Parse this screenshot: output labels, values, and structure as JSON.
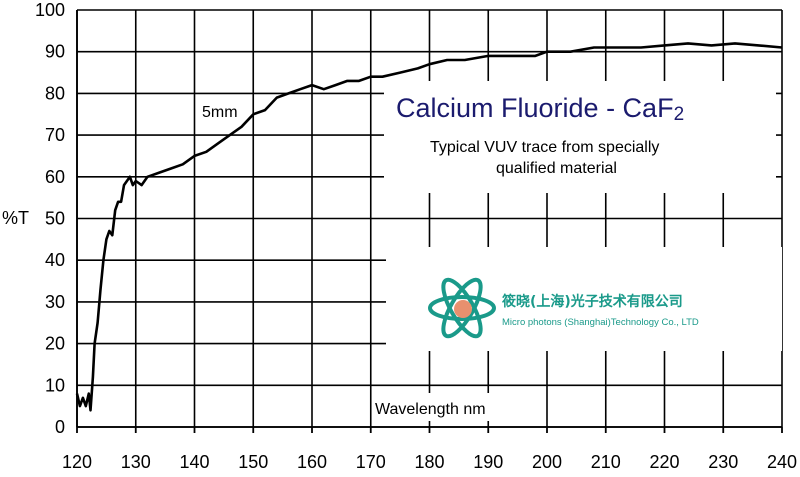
{
  "chart_data": {
    "type": "line",
    "title": "Calcium Fluoride - CaF",
    "title_subscript": "2",
    "subtitle_lines": [
      "Typical VUV trace from specially",
      "qualified material"
    ],
    "xlabel": "Wavelength nm",
    "ylabel": "%T",
    "annotation": "5mm",
    "xlim": [
      120,
      240
    ],
    "ylim": [
      0,
      100
    ],
    "xticks": [
      120,
      130,
      140,
      150,
      160,
      170,
      180,
      190,
      200,
      210,
      220,
      230,
      240
    ],
    "yticks": [
      0,
      10,
      20,
      30,
      40,
      50,
      60,
      70,
      80,
      90,
      100
    ],
    "grid": true,
    "series": [
      {
        "x": [
          120,
          120.5,
          121,
          121.5,
          122,
          122.3,
          122.7,
          123,
          123.5,
          124,
          124.5,
          125,
          125.5,
          126,
          126.5,
          127,
          127.5,
          128,
          128.5,
          129,
          129.5,
          130,
          131,
          132,
          134,
          136,
          138,
          140,
          142,
          144,
          146,
          148,
          150,
          152,
          154,
          156,
          158,
          160,
          162,
          164,
          166,
          168,
          170,
          172,
          175,
          178,
          180,
          183,
          186,
          190,
          194,
          198,
          200,
          204,
          208,
          212,
          216,
          220,
          224,
          228,
          232,
          236,
          240
        ],
        "y": [
          8,
          5,
          7,
          5,
          8,
          4,
          12,
          20,
          25,
          33,
          40,
          45,
          47,
          46,
          52,
          54,
          54,
          58,
          59,
          60,
          58,
          59,
          58,
          60,
          61,
          62,
          63,
          65,
          66,
          68,
          70,
          72,
          75,
          76,
          79,
          80,
          81,
          82,
          81,
          82,
          83,
          83,
          84,
          84,
          85,
          86,
          87,
          88,
          88,
          89,
          89,
          89,
          90,
          90,
          91,
          91,
          91,
          91.5,
          92,
          91.5,
          92,
          91.5,
          91
        ]
      }
    ]
  },
  "logo": {
    "chinese": "筱晓(上海)光子技术有限公司",
    "english": "Micro photons (Shanghai)Technology Co., LTD",
    "colors": {
      "teal": "#1a9a8a",
      "orange": "#e8906e"
    }
  }
}
